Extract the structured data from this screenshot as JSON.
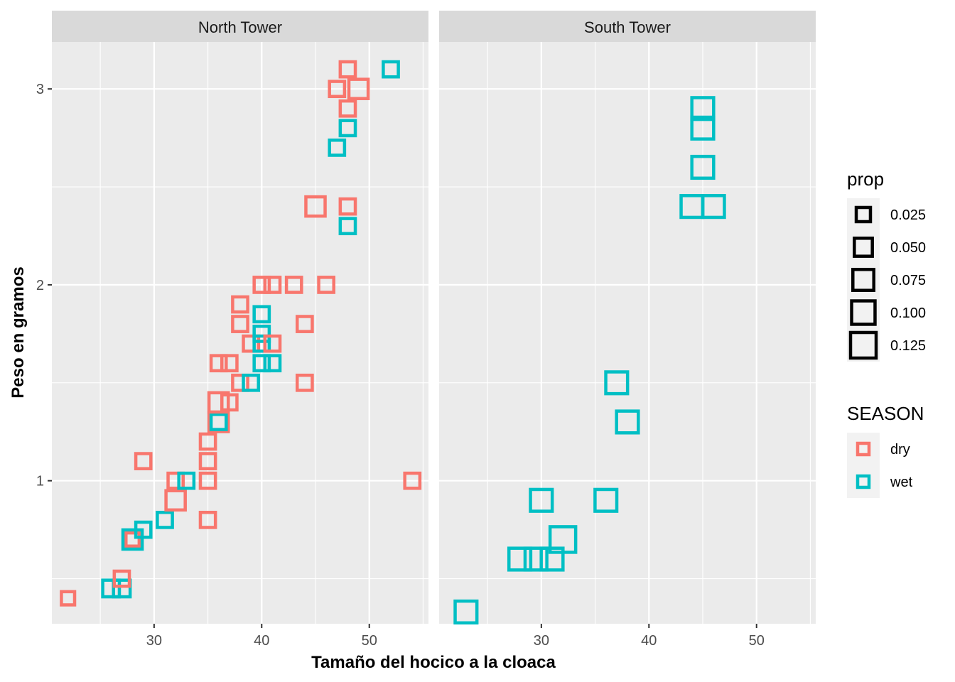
{
  "chart_data": {
    "type": "scatter",
    "xlabel": "Tamaño del hocico a la cloaca",
    "ylabel": "Peso en gramos",
    "xlim": [
      20.5,
      55.5
    ],
    "ylim": [
      0.27,
      3.24
    ],
    "x_ticks": [
      30,
      40,
      50
    ],
    "x_tick_labels": [
      "30",
      "40",
      "50"
    ],
    "y_ticks": [
      1,
      2,
      3
    ],
    "y_tick_labels": [
      "1",
      "2",
      "3"
    ],
    "grid": true,
    "legend_position": "right",
    "colors": {
      "dry": "#F8766D",
      "wet": "#00BFC4"
    },
    "size_legend": {
      "title": "prop",
      "breaks": [
        0.025,
        0.05,
        0.075,
        0.1,
        0.125
      ],
      "labels": [
        "0.025",
        "0.050",
        "0.075",
        "0.100",
        "0.125"
      ]
    },
    "color_legend": {
      "title": "SEASON",
      "entries": [
        "dry",
        "wet"
      ]
    },
    "panels": [
      {
        "name": "North Tower",
        "points": [
          {
            "x": 22,
            "y": 0.4,
            "season": "dry",
            "prop": 0.02
          },
          {
            "x": 26,
            "y": 0.45,
            "season": "wet",
            "prop": 0.04
          },
          {
            "x": 27,
            "y": 0.45,
            "season": "wet",
            "prop": 0.04
          },
          {
            "x": 27,
            "y": 0.5,
            "season": "dry",
            "prop": 0.03
          },
          {
            "x": 28,
            "y": 0.7,
            "season": "dry",
            "prop": 0.02
          },
          {
            "x": 28,
            "y": 0.7,
            "season": "wet",
            "prop": 0.06
          },
          {
            "x": 29,
            "y": 0.75,
            "season": "wet",
            "prop": 0.03
          },
          {
            "x": 29,
            "y": 1.1,
            "season": "dry",
            "prop": 0.03
          },
          {
            "x": 31,
            "y": 0.8,
            "season": "wet",
            "prop": 0.03
          },
          {
            "x": 32,
            "y": 0.9,
            "season": "dry",
            "prop": 0.06
          },
          {
            "x": 32,
            "y": 1.0,
            "season": "dry",
            "prop": 0.03
          },
          {
            "x": 33,
            "y": 1.0,
            "season": "wet",
            "prop": 0.03
          },
          {
            "x": 35,
            "y": 0.8,
            "season": "dry",
            "prop": 0.03
          },
          {
            "x": 35,
            "y": 1.0,
            "season": "dry",
            "prop": 0.03
          },
          {
            "x": 35,
            "y": 1.1,
            "season": "dry",
            "prop": 0.03
          },
          {
            "x": 35,
            "y": 1.2,
            "season": "dry",
            "prop": 0.03
          },
          {
            "x": 36,
            "y": 1.3,
            "season": "dry",
            "prop": 0.06
          },
          {
            "x": 36,
            "y": 1.3,
            "season": "wet",
            "prop": 0.03
          },
          {
            "x": 36,
            "y": 1.4,
            "season": "dry",
            "prop": 0.06
          },
          {
            "x": 36,
            "y": 1.6,
            "season": "dry",
            "prop": 0.03
          },
          {
            "x": 37,
            "y": 1.4,
            "season": "dry",
            "prop": 0.03
          },
          {
            "x": 37,
            "y": 1.6,
            "season": "dry",
            "prop": 0.03
          },
          {
            "x": 38,
            "y": 1.5,
            "season": "dry",
            "prop": 0.03
          },
          {
            "x": 38,
            "y": 1.8,
            "season": "dry",
            "prop": 0.03
          },
          {
            "x": 38,
            "y": 1.9,
            "season": "dry",
            "prop": 0.03
          },
          {
            "x": 39,
            "y": 1.5,
            "season": "wet",
            "prop": 0.03
          },
          {
            "x": 39,
            "y": 1.7,
            "season": "dry",
            "prop": 0.03
          },
          {
            "x": 40,
            "y": 1.6,
            "season": "wet",
            "prop": 0.03
          },
          {
            "x": 40,
            "y": 1.7,
            "season": "wet",
            "prop": 0.03
          },
          {
            "x": 40,
            "y": 1.75,
            "season": "wet",
            "prop": 0.03
          },
          {
            "x": 40,
            "y": 1.85,
            "season": "wet",
            "prop": 0.03
          },
          {
            "x": 40,
            "y": 2.0,
            "season": "dry",
            "prop": 0.03
          },
          {
            "x": 41,
            "y": 1.6,
            "season": "wet",
            "prop": 0.03
          },
          {
            "x": 41,
            "y": 1.7,
            "season": "dry",
            "prop": 0.03
          },
          {
            "x": 41,
            "y": 2.0,
            "season": "dry",
            "prop": 0.03
          },
          {
            "x": 43,
            "y": 2.0,
            "season": "dry",
            "prop": 0.03
          },
          {
            "x": 44,
            "y": 1.5,
            "season": "dry",
            "prop": 0.03
          },
          {
            "x": 44,
            "y": 1.8,
            "season": "dry",
            "prop": 0.03
          },
          {
            "x": 45,
            "y": 2.4,
            "season": "dry",
            "prop": 0.06
          },
          {
            "x": 46,
            "y": 2.0,
            "season": "dry",
            "prop": 0.03
          },
          {
            "x": 47,
            "y": 2.7,
            "season": "wet",
            "prop": 0.03
          },
          {
            "x": 47,
            "y": 3.0,
            "season": "dry",
            "prop": 0.03
          },
          {
            "x": 48,
            "y": 2.3,
            "season": "wet",
            "prop": 0.03
          },
          {
            "x": 48,
            "y": 2.4,
            "season": "dry",
            "prop": 0.03
          },
          {
            "x": 48,
            "y": 2.8,
            "season": "wet",
            "prop": 0.03
          },
          {
            "x": 48,
            "y": 2.9,
            "season": "dry",
            "prop": 0.03
          },
          {
            "x": 48,
            "y": 3.1,
            "season": "dry",
            "prop": 0.03
          },
          {
            "x": 49,
            "y": 3.0,
            "season": "dry",
            "prop": 0.06
          },
          {
            "x": 52,
            "y": 3.1,
            "season": "wet",
            "prop": 0.03
          },
          {
            "x": 54,
            "y": 1.0,
            "season": "dry",
            "prop": 0.03
          }
        ]
      },
      {
        "name": "South Tower",
        "points": [
          {
            "x": 23,
            "y": 0.33,
            "season": "wet",
            "prop": 0.083
          },
          {
            "x": 28,
            "y": 0.6,
            "season": "wet",
            "prop": 0.083
          },
          {
            "x": 29.5,
            "y": 0.6,
            "season": "wet",
            "prop": 0.083
          },
          {
            "x": 31,
            "y": 0.6,
            "season": "wet",
            "prop": 0.083
          },
          {
            "x": 30,
            "y": 0.9,
            "season": "wet",
            "prop": 0.083
          },
          {
            "x": 32,
            "y": 0.7,
            "season": "wet",
            "prop": 0.125
          },
          {
            "x": 36,
            "y": 0.9,
            "season": "wet",
            "prop": 0.083
          },
          {
            "x": 37,
            "y": 1.5,
            "season": "wet",
            "prop": 0.083
          },
          {
            "x": 38,
            "y": 1.3,
            "season": "wet",
            "prop": 0.083
          },
          {
            "x": 44,
            "y": 2.4,
            "season": "wet",
            "prop": 0.083
          },
          {
            "x": 46,
            "y": 2.4,
            "season": "wet",
            "prop": 0.083
          },
          {
            "x": 45,
            "y": 2.6,
            "season": "wet",
            "prop": 0.083
          },
          {
            "x": 45,
            "y": 2.8,
            "season": "wet",
            "prop": 0.083
          },
          {
            "x": 45,
            "y": 2.9,
            "season": "wet",
            "prop": 0.083
          }
        ]
      }
    ]
  }
}
